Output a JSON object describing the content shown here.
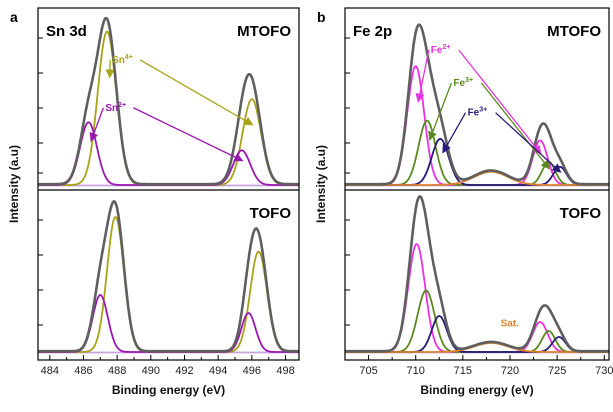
{
  "chart_data": [
    {
      "type": "line",
      "panel_letter": "a",
      "title": "Sn 3d",
      "xlabel": "Binding energy (eV)",
      "ylabel": "Intensity (a.u)",
      "xlim": [
        483.3,
        498.8
      ],
      "xticks": [
        484,
        486,
        488,
        490,
        492,
        494,
        496,
        498
      ],
      "colors": {
        "envelope": "#5f5f5f",
        "sn4": "#a8a418",
        "sn2": "#9a18b0",
        "background": "#c9a2e0",
        "arrow_sn4": "#a8a418",
        "arrow_sn2": "#9a18b0"
      },
      "subpanels": [
        {
          "sample": "MTOFO",
          "peaks": [
            {
              "species": "Sn4+",
              "center": 487.4,
              "width": 0.55,
              "height": 0.93
            },
            {
              "species": "Sn4+",
              "center": 496.0,
              "width": 0.55,
              "height": 0.52
            },
            {
              "species": "Sn2+",
              "center": 486.3,
              "width": 0.5,
              "height": 0.38
            },
            {
              "species": "Sn2+",
              "center": 495.4,
              "width": 0.5,
              "height": 0.21
            }
          ],
          "labels": [
            {
              "text": "Sn",
              "sup": "4+",
              "species": "Sn4+",
              "at": [
                487.7,
                0.74
              ]
            },
            {
              "text": "Sn",
              "sup": "2+",
              "species": "Sn2+",
              "at": [
                487.3,
                0.45
              ]
            }
          ]
        },
        {
          "sample": "TOFO",
          "peaks": [
            {
              "species": "Sn4+",
              "center": 487.9,
              "width": 0.5,
              "height": 0.9
            },
            {
              "species": "Sn4+",
              "center": 496.4,
              "width": 0.5,
              "height": 0.67
            },
            {
              "species": "Sn2+",
              "center": 487.0,
              "width": 0.45,
              "height": 0.38
            },
            {
              "species": "Sn2+",
              "center": 495.8,
              "width": 0.42,
              "height": 0.26
            }
          ],
          "labels": []
        }
      ]
    },
    {
      "type": "line",
      "panel_letter": "b",
      "title": "Fe 2p",
      "xlabel": "Binding energy (eV)",
      "ylabel": "Intensity (a.u)",
      "xlim": [
        702.5,
        730.5
      ],
      "xticks": [
        705,
        710,
        715,
        720,
        725,
        730
      ],
      "colors": {
        "envelope": "#5f5f5f",
        "fe2": "#e832e0",
        "fe3": "#5a8a1e",
        "fe3b": "#2a1a78",
        "sat": "#d9822b",
        "background": "#c9a2e0"
      },
      "subpanels": [
        {
          "sample": "MTOFO",
          "peaks": [
            {
              "species": "Fe2+",
              "center": 710.0,
              "width": 0.9,
              "height": 0.72
            },
            {
              "species": "Fe3+",
              "center": 711.2,
              "width": 0.9,
              "height": 0.39
            },
            {
              "species": "Fe3+b",
              "center": 712.6,
              "width": 0.9,
              "height": 0.28
            },
            {
              "species": "Sat",
              "center": 718.0,
              "width": 1.8,
              "height": 0.08
            },
            {
              "species": "Fe2+",
              "center": 723.2,
              "width": 0.8,
              "height": 0.27
            },
            {
              "species": "Fe3+",
              "center": 724.1,
              "width": 0.7,
              "height": 0.14
            },
            {
              "species": "Fe3+b",
              "center": 725.3,
              "width": 0.7,
              "height": 0.11
            }
          ],
          "labels": [
            {
              "text": "Fe",
              "sup": "2+",
              "species": "Fe2+",
              "at": [
                711.6,
                0.8
              ]
            },
            {
              "text": "Fe",
              "sup": "3+",
              "species": "Fe3+",
              "at": [
                714.0,
                0.6
              ]
            },
            {
              "text": "Fe",
              "sup": "3+",
              "species": "Fe3+b",
              "at": [
                715.5,
                0.42
              ]
            }
          ]
        },
        {
          "sample": "TOFO",
          "peaks": [
            {
              "species": "Fe2+",
              "center": 710.1,
              "width": 0.9,
              "height": 0.72
            },
            {
              "species": "Fe3+",
              "center": 711.1,
              "width": 0.9,
              "height": 0.41
            },
            {
              "species": "Fe3+b",
              "center": 712.5,
              "width": 0.8,
              "height": 0.24
            },
            {
              "species": "Sat",
              "center": 718.0,
              "width": 1.8,
              "height": 0.06
            },
            {
              "species": "Fe2+",
              "center": 723.2,
              "width": 0.8,
              "height": 0.2
            },
            {
              "species": "Fe3+",
              "center": 724.1,
              "width": 0.7,
              "height": 0.14
            },
            {
              "species": "Fe3+b",
              "center": 725.2,
              "width": 0.7,
              "height": 0.1
            }
          ],
          "labels": [
            {
              "text": "Sat.",
              "sup": "",
              "species": "Sat",
              "at": [
                719.0,
                0.17
              ]
            }
          ]
        }
      ]
    }
  ]
}
